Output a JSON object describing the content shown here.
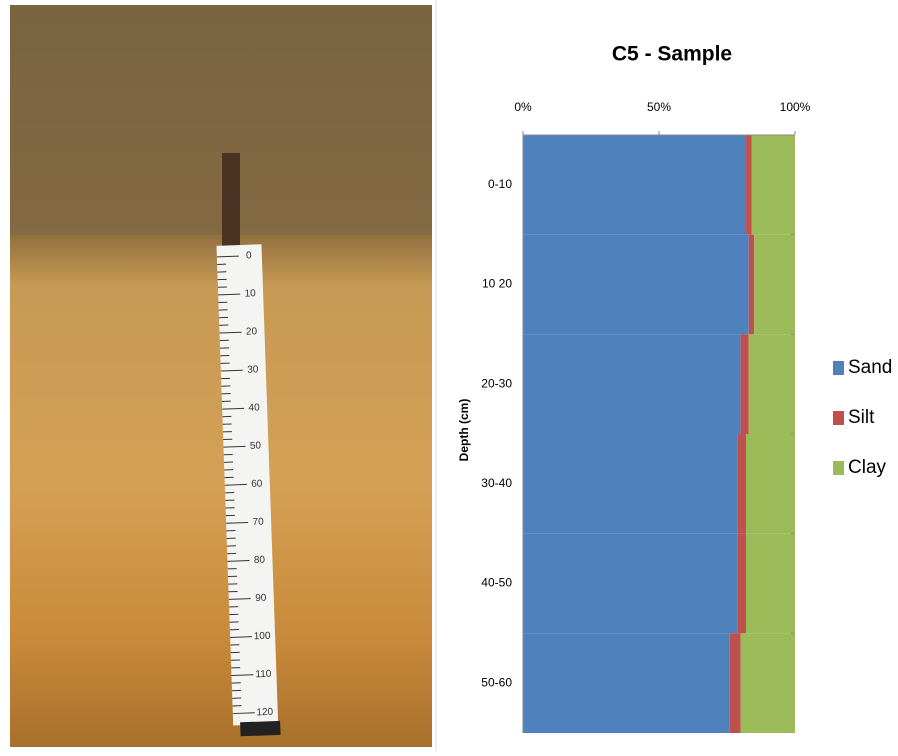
{
  "photo": {
    "tape_labels": [
      "0",
      "10",
      "20",
      "30",
      "40",
      "50",
      "60",
      "70",
      "80",
      "90",
      "100",
      "110",
      "120"
    ]
  },
  "chart_data": {
    "type": "bar",
    "orientation": "horizontal",
    "stacked": true,
    "title": "C5 - Sample",
    "ylabel": "Depth (cm)",
    "categories": [
      "0-10",
      "10 20",
      "20-30",
      "30-40",
      "40-50",
      "50-60"
    ],
    "series": [
      {
        "name": "Sand",
        "color": "#4f81bd",
        "values": [
          82,
          83,
          80,
          79,
          79,
          76
        ]
      },
      {
        "name": "Silt",
        "color": "#c0504d",
        "values": [
          2,
          2,
          3,
          3,
          3,
          4
        ]
      },
      {
        "name": "Clay",
        "color": "#9bbb59",
        "values": [
          16,
          15,
          17,
          18,
          18,
          20
        ]
      }
    ],
    "xlim": [
      0,
      100
    ],
    "xticks": [
      {
        "value": 0,
        "label": "0%"
      },
      {
        "value": 50,
        "label": "50%"
      },
      {
        "value": 100,
        "label": "100%"
      }
    ],
    "legend": "right"
  }
}
